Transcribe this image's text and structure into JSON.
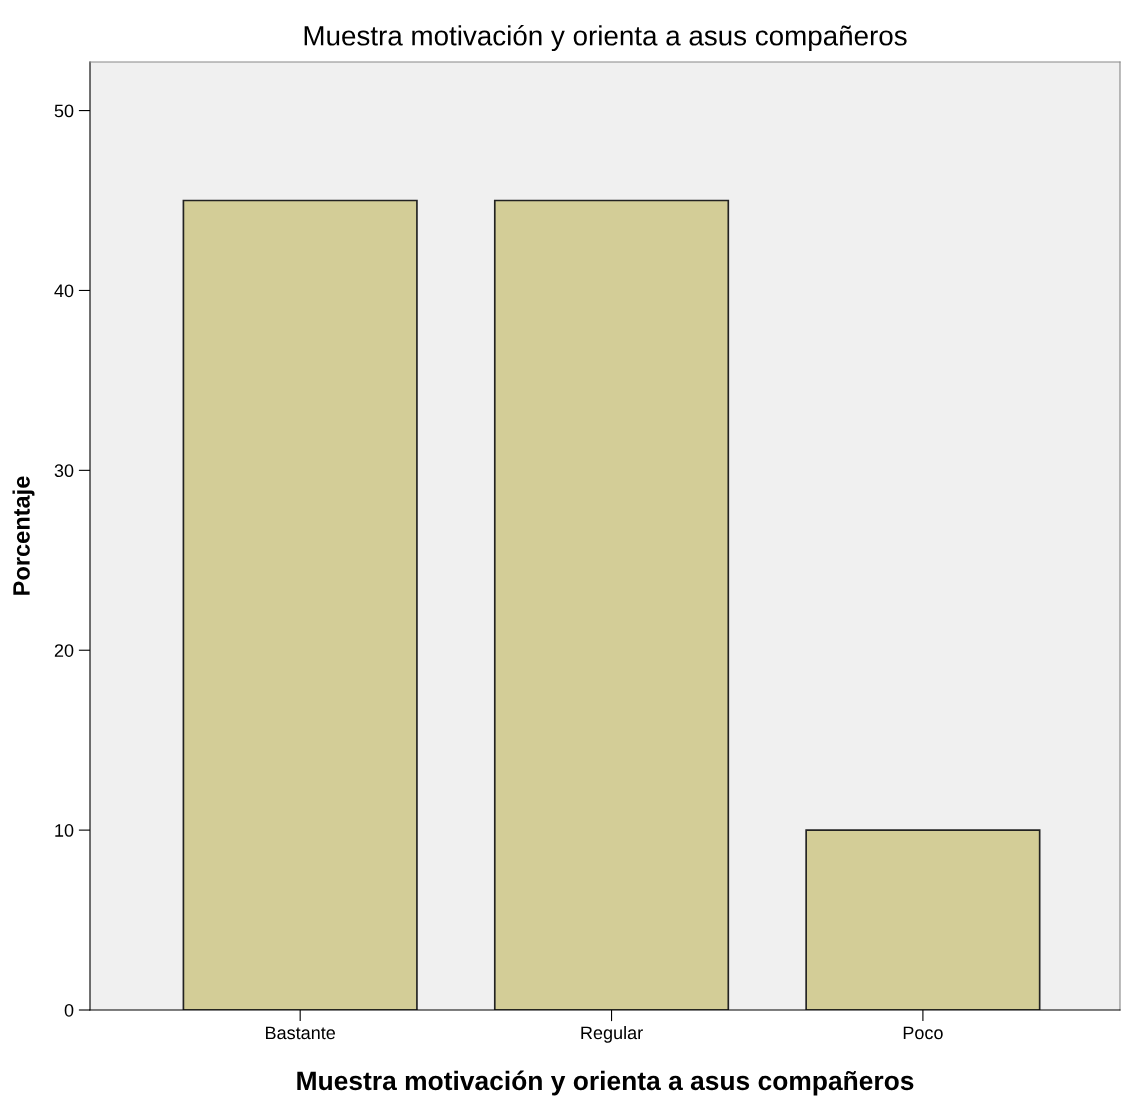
{
  "chart_data": {
    "type": "bar",
    "title": "Muestra motivación y orienta a asus compañeros",
    "xlabel": "Muestra motivación y orienta a asus compañeros",
    "ylabel": "Porcentaje",
    "categories": [
      "Bastante",
      "Regular",
      "Poco"
    ],
    "values": [
      45,
      45,
      10
    ],
    "color": "#d3cd97",
    "ylim": [
      0,
      52.7
    ],
    "yticks": [
      0,
      10,
      20,
      30,
      40,
      50
    ],
    "grid": false,
    "legend": false
  }
}
